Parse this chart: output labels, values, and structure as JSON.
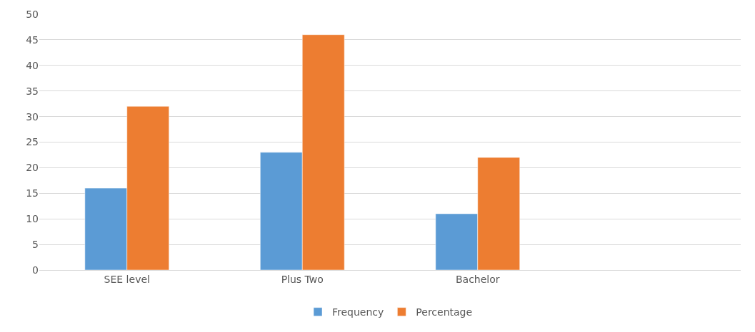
{
  "chart_data": {
    "type": "bar",
    "categories": [
      "SEE level",
      "Plus Two",
      "Bachelor",
      null
    ],
    "series": [
      {
        "name": "Frequency",
        "color": "#5b9bd5",
        "values": [
          16,
          23,
          11,
          null
        ]
      },
      {
        "name": "Percentage",
        "color": "#ed7d31",
        "values": [
          32,
          46,
          22,
          null
        ]
      }
    ],
    "ylim": [
      0,
      50
    ],
    "yticks": [
      0,
      5,
      10,
      15,
      20,
      25,
      30,
      35,
      40,
      45,
      50
    ],
    "grid": "y",
    "legend": "bottom"
  }
}
